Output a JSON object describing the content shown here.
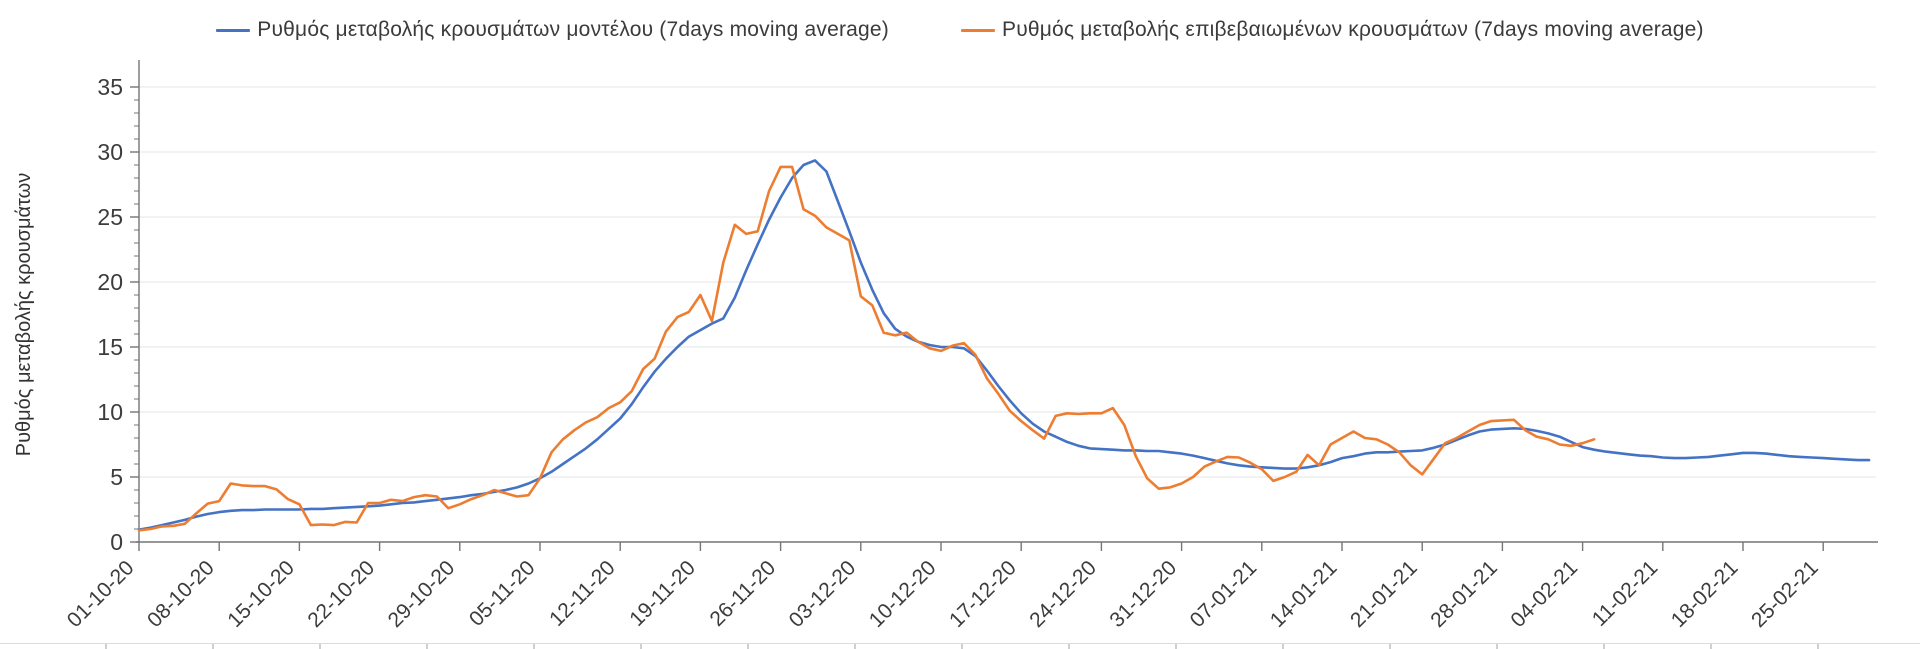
{
  "legend": {
    "items": [
      {
        "label": "Ρυθμός μεταβολής κρουσμάτων μοντέλου (7days moving average)",
        "color": "#4472C4"
      },
      {
        "label": "Ρυθμός μεταβολής επιβεβαιωμένων κρουσμάτων (7days moving average)",
        "color": "#ED7D31"
      }
    ]
  },
  "chart_data": {
    "type": "line",
    "title": "",
    "xlabel": "",
    "ylabel": "Ρυθμός μεταβολής κρουσμάτων",
    "ylim": [
      0,
      35
    ],
    "y_ticks": [
      0,
      5,
      10,
      15,
      20,
      25,
      30,
      35
    ],
    "grid": "horizontal gridlines every 5 units, minor y ticks every 1 unit",
    "legend_position": "top-center",
    "x_tick_labels": [
      "01-10-20",
      "08-10-20",
      "15-10-20",
      "22-10-20",
      "29-10-20",
      "05-11-20",
      "12-11-20",
      "19-11-20",
      "26-11-20",
      "03-12-20",
      "10-12-20",
      "17-12-20",
      "24-12-20",
      "31-12-20",
      "07-01-21",
      "14-01-21",
      "21-01-21",
      "28-01-21",
      "04-02-21",
      "11-02-21",
      "18-02-21",
      "25-02-21"
    ],
    "x_unit": "daily values; 7 days between consecutive date ticks; both series start 01-10-20",
    "series": [
      {
        "name": "Ρυθμός μεταβολής κρουσμάτων μοντέλου (7days moving average)",
        "color": "#4472C4",
        "start": "01-10-20",
        "end": "01-03-21",
        "values": [
          0.95,
          1.1,
          1.3,
          1.5,
          1.7,
          1.95,
          2.15,
          2.3,
          2.4,
          2.45,
          2.45,
          2.5,
          2.5,
          2.5,
          2.5,
          2.55,
          2.55,
          2.6,
          2.65,
          2.7,
          2.75,
          2.8,
          2.9,
          3.0,
          3.05,
          3.15,
          3.25,
          3.35,
          3.45,
          3.6,
          3.7,
          3.85,
          4.0,
          4.2,
          4.5,
          4.9,
          5.4,
          6.0,
          6.6,
          7.2,
          7.9,
          8.7,
          9.5,
          10.6,
          11.9,
          13.1,
          14.1,
          15.0,
          15.8,
          16.3,
          16.8,
          17.2,
          18.8,
          20.9,
          22.9,
          24.8,
          26.5,
          28.0,
          29.0,
          29.35,
          28.5,
          26.2,
          23.9,
          21.5,
          19.4,
          17.6,
          16.4,
          15.8,
          15.4,
          15.15,
          15.0,
          15.0,
          14.9,
          14.3,
          13.2,
          12.0,
          10.9,
          9.9,
          9.1,
          8.5,
          8.1,
          7.7,
          7.4,
          7.2,
          7.15,
          7.1,
          7.05,
          7.05,
          7.0,
          7.0,
          6.9,
          6.8,
          6.65,
          6.45,
          6.25,
          6.05,
          5.9,
          5.8,
          5.75,
          5.7,
          5.65,
          5.65,
          5.75,
          5.9,
          6.15,
          6.45,
          6.6,
          6.8,
          6.9,
          6.9,
          6.95,
          7.0,
          7.05,
          7.25,
          7.5,
          7.85,
          8.2,
          8.5,
          8.65,
          8.7,
          8.75,
          8.7,
          8.55,
          8.35,
          8.1,
          7.7,
          7.3,
          7.1,
          6.95,
          6.85,
          6.75,
          6.65,
          6.6,
          6.5,
          6.45,
          6.45,
          6.5,
          6.55,
          6.65,
          6.75,
          6.85,
          6.85,
          6.8,
          6.7,
          6.6,
          6.55,
          6.5,
          6.45,
          6.4,
          6.35,
          6.3,
          6.3
        ]
      },
      {
        "name": "Ρυθμός μεταβολής επιβεβαιωμένων κρουσμάτων (7days moving average)",
        "color": "#ED7D31",
        "start": "01-10-20",
        "end": "05-02-21",
        "values": [
          0.9,
          1.0,
          1.2,
          1.25,
          1.4,
          2.2,
          2.95,
          3.15,
          4.5,
          4.35,
          4.3,
          4.3,
          4.05,
          3.3,
          2.9,
          1.3,
          1.35,
          1.3,
          1.55,
          1.5,
          3.0,
          3.0,
          3.25,
          3.15,
          3.45,
          3.6,
          3.5,
          2.6,
          2.9,
          3.3,
          3.6,
          4.0,
          3.75,
          3.5,
          3.6,
          4.9,
          6.9,
          7.9,
          8.6,
          9.2,
          9.6,
          10.3,
          10.75,
          11.6,
          13.3,
          14.1,
          16.2,
          17.3,
          17.7,
          19.0,
          17.0,
          21.5,
          24.4,
          23.7,
          23.9,
          27.0,
          28.85,
          28.85,
          25.6,
          25.1,
          24.2,
          23.7,
          23.2,
          18.9,
          18.2,
          16.1,
          15.9,
          16.1,
          15.4,
          14.9,
          14.7,
          15.1,
          15.3,
          14.4,
          12.6,
          11.4,
          10.1,
          9.3,
          8.6,
          7.95,
          9.7,
          9.9,
          9.85,
          9.9,
          9.9,
          10.3,
          9.0,
          6.6,
          4.9,
          4.1,
          4.2,
          4.5,
          5.0,
          5.8,
          6.2,
          6.55,
          6.5,
          6.1,
          5.6,
          4.7,
          5.0,
          5.4,
          6.7,
          5.9,
          7.5,
          8.0,
          8.5,
          8.0,
          7.9,
          7.5,
          6.9,
          5.9,
          5.2,
          6.4,
          7.6,
          8.0,
          8.5,
          9.0,
          9.3,
          9.35,
          9.4,
          8.6,
          8.1,
          7.9,
          7.5,
          7.4,
          7.6,
          7.9
        ]
      }
    ]
  }
}
